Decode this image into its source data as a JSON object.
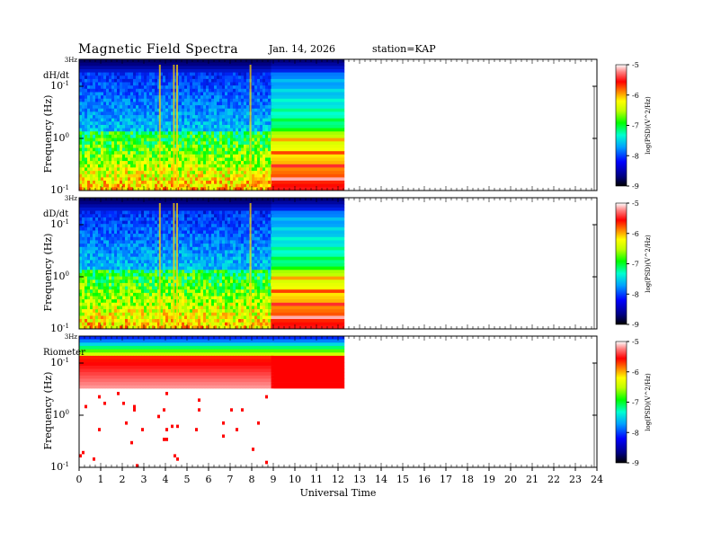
{
  "header": {
    "title": "Magnetic  Field  Spectra",
    "date": "Jan. 14, 2026",
    "station": "station=KAP"
  },
  "colors": {
    "scale": [
      "#000040",
      "#0000ff",
      "#00a0ff",
      "#00ffd0",
      "#00ff00",
      "#c0ff00",
      "#ffff00",
      "#ff8000",
      "#ff0000",
      "#ff8080",
      "#ffffff"
    ]
  },
  "chart_data": {
    "type": "heatmap",
    "title": "Magnetic Field Spectra",
    "xlabel": "Universal Time",
    "xlim": [
      0,
      24
    ],
    "x_ticks": [
      "0",
      "1",
      "2",
      "3",
      "4",
      "5",
      "6",
      "7",
      "8",
      "9",
      "10",
      "11",
      "12",
      "13",
      "14",
      "15",
      "16",
      "17",
      "18",
      "19",
      "20",
      "21",
      "22",
      "23",
      "24"
    ],
    "data_coverage_hours": [
      0,
      12.3
    ],
    "resolution_change_hour": 8.9,
    "panels": [
      {
        "label": "dH/dt",
        "ylabel": "Frequency (Hz)",
        "top_label": "3Hz",
        "ytick_labels": [
          "10^-1",
          "10^0",
          "10^-1"
        ],
        "colorbar": {
          "label": "log(PSD)(V^2/Hz)",
          "ticks": [
            "-5",
            "-6",
            "-7",
            "-8",
            "-9"
          ],
          "range": [
            -9,
            -5
          ]
        },
        "impulsive_events_hours": [
          3.7,
          4.35,
          4.5,
          7.9
        ]
      },
      {
        "label": "dD/dt",
        "ylabel": "Frequency (Hz)",
        "top_label": "3Hz",
        "ytick_labels": [
          "10^-1",
          "10^0",
          "10^-1"
        ],
        "colorbar": {
          "label": "log(PSD)(V^2/Hz)",
          "ticks": [
            "-5",
            "-6",
            "-7",
            "-8",
            "-9"
          ],
          "range": [
            -9,
            -5
          ]
        },
        "impulsive_events_hours": [
          3.7,
          4.35,
          4.5,
          7.9
        ]
      },
      {
        "label": "Riometer",
        "ylabel": "Frequency (Hz)",
        "top_label": "3Hz",
        "ytick_labels": [
          "10^-1",
          "10^0",
          "10^-1"
        ],
        "colorbar": {
          "label": "log(PSD)(V^2/Hz)",
          "ticks": [
            "-5",
            "-6",
            "-7",
            "-8",
            "-9"
          ],
          "range": [
            -9,
            -5
          ]
        }
      }
    ]
  }
}
